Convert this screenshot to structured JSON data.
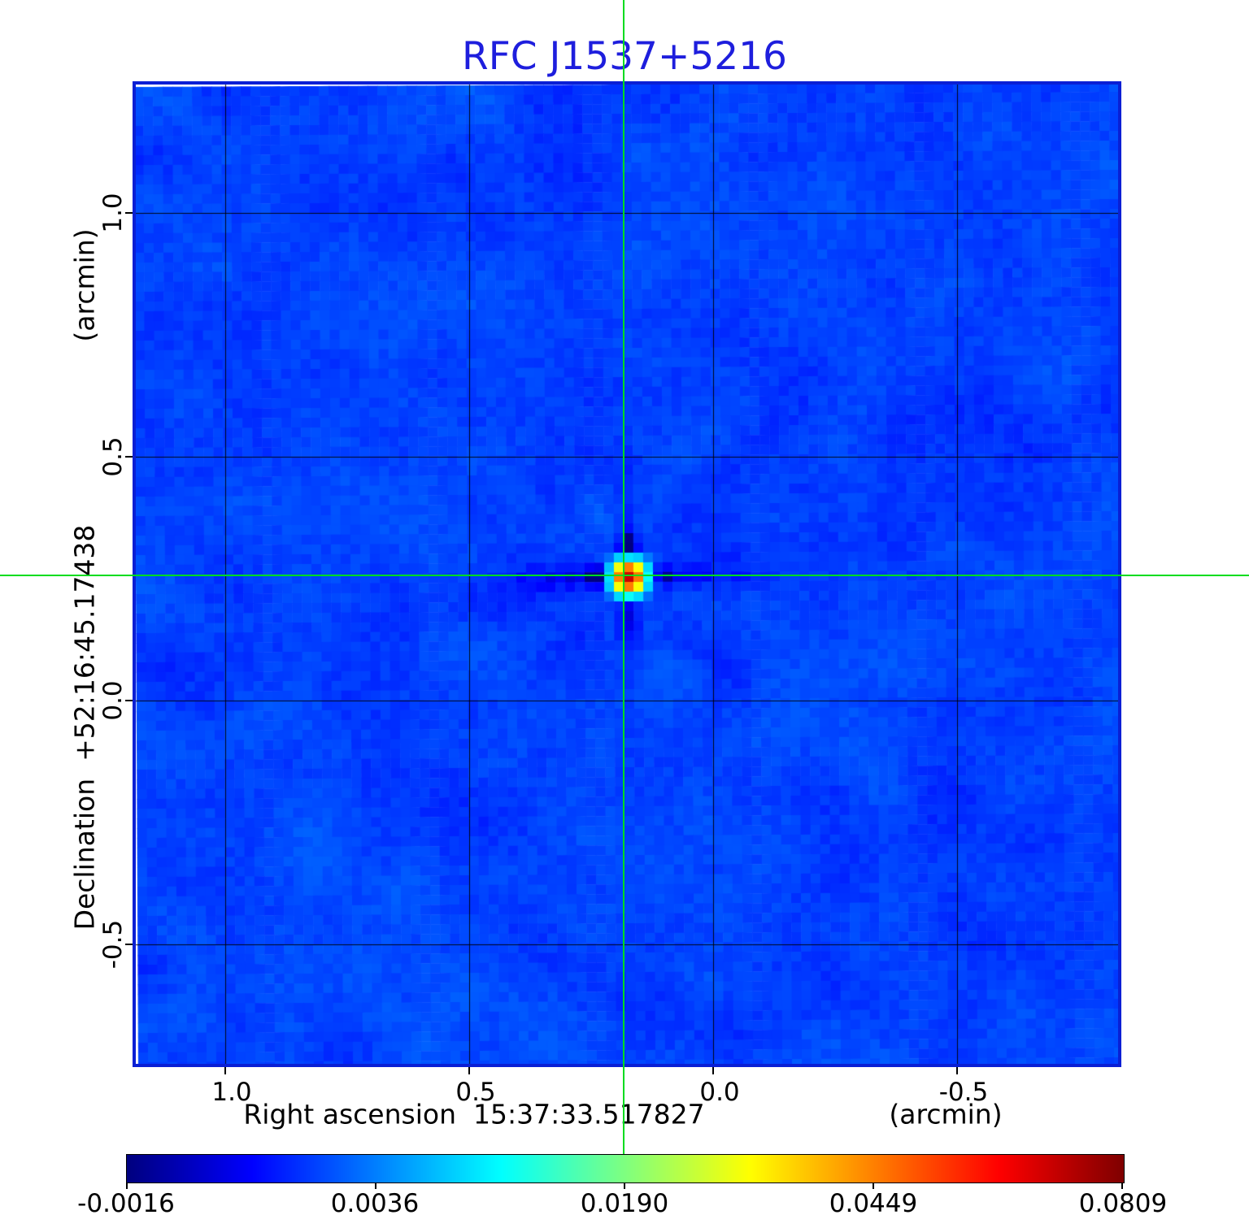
{
  "title": "RFC J1537+5216",
  "colors": {
    "title_blue": "#1e1edd",
    "frame_blue": "#0a1fd4",
    "crosshair_green": "#00dc1e",
    "grid_black": "#000000",
    "map_background_blue": "#0448f0",
    "colorbar_navy_end": "#000080",
    "colorbar_red_end": "#800000"
  },
  "axes": {
    "y": {
      "axis_label": "Declination  +52:16:45.17438",
      "unit_label": "(arcmin)",
      "ticks": [
        "1.0",
        "0.5",
        "0.0",
        "-0.5"
      ]
    },
    "x": {
      "axis_label": "Right ascension  15:37:33.517827",
      "unit_label": "(arcmin)",
      "ticks": [
        "1.0",
        "0.5",
        "0.0",
        "-0.5"
      ]
    }
  },
  "colorbar": {
    "min": -0.0016,
    "max": 0.0809,
    "scale": "quadratic",
    "colormap": "jet",
    "ticks": [
      "-0.0016",
      "0.0036",
      "0.0190",
      "0.0449",
      "0.0809"
    ]
  },
  "chart_data": {
    "type": "heatmap",
    "title": "RFC J1537+5216",
    "xlabel": "Right ascension  15:37:33.517827 (arcmin)",
    "ylabel": "Declination  +52:16:45.17438 (arcmin)",
    "x_ticks": [
      1.0,
      0.5,
      0.0,
      -0.5
    ],
    "y_ticks": [
      1.0,
      0.5,
      0.0,
      -0.5
    ],
    "xlim": [
      1.18,
      -0.83
    ],
    "ylim": [
      -0.75,
      1.27
    ],
    "grid": true,
    "legend_position": "bottom-colorbar",
    "colormap": "jet",
    "intensity_scale": "quadratic",
    "colorbar_ticks": [
      -0.0016,
      0.0036,
      0.019,
      0.0449,
      0.0809
    ],
    "background_level": 0.0013,
    "peak": {
      "value": 0.0809,
      "ra_offset_arcmin": 0.18,
      "dec_offset_arcmin": 0.26
    },
    "crosshair_offset_arcmin": {
      "x": 0.18,
      "y": 0.26
    }
  }
}
